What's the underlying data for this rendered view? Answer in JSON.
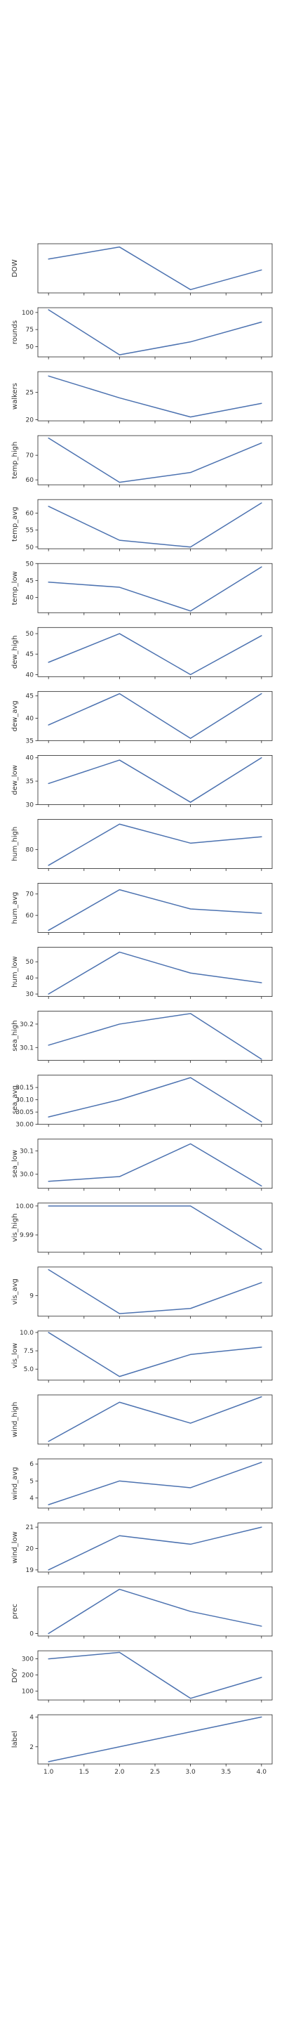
{
  "colors": {
    "line": "#4c72b0",
    "axis": "#262626",
    "text": "#333333"
  },
  "chart_data": [
    {
      "type": "line",
      "ylabel": "DOW",
      "x": [
        1,
        2,
        3,
        4
      ],
      "values": [
        4.6,
        5.7,
        1.8,
        3.6
      ],
      "ylim": [
        1.5,
        6.0
      ],
      "yticks": [],
      "yticklabels": [],
      "xticks": [
        1.0,
        1.5,
        2.0,
        2.5,
        3.0,
        3.5,
        4.0
      ],
      "xticklabels": [
        "1.0",
        "1.5",
        "2.0",
        "2.5",
        "3.0",
        "3.5",
        "4.0"
      ],
      "show_xticklabels": false
    },
    {
      "type": "line",
      "ylabel": "rounds",
      "x": [
        1,
        2,
        3,
        4
      ],
      "values": [
        104,
        38,
        57,
        86
      ],
      "ylim": [
        35,
        107
      ],
      "yticks": [
        50,
        75,
        100
      ],
      "yticklabels": [
        "50",
        "75",
        "100"
      ],
      "xticks": [
        1.0,
        1.5,
        2.0,
        2.5,
        3.0,
        3.5,
        4.0
      ],
      "xticklabels": [
        "1.0",
        "1.5",
        "2.0",
        "2.5",
        "3.0",
        "3.5",
        "4.0"
      ],
      "show_xticklabels": false
    },
    {
      "type": "line",
      "ylabel": "walkers",
      "x": [
        1,
        2,
        3,
        4
      ],
      "values": [
        28,
        24,
        20.5,
        23
      ],
      "ylim": [
        19.8,
        28.8
      ],
      "yticks": [
        20,
        25
      ],
      "yticklabels": [
        "20",
        "25"
      ],
      "xticks": [
        1.0,
        1.5,
        2.0,
        2.5,
        3.0,
        3.5,
        4.0
      ],
      "xticklabels": [
        "1.0",
        "1.5",
        "2.0",
        "2.5",
        "3.0",
        "3.5",
        "4.0"
      ],
      "show_xticklabels": false
    },
    {
      "type": "line",
      "ylabel": "temp_high",
      "x": [
        1,
        2,
        3,
        4
      ],
      "values": [
        77,
        59,
        63,
        75
      ],
      "ylim": [
        58,
        78
      ],
      "yticks": [
        60,
        70
      ],
      "yticklabels": [
        "60",
        "70"
      ],
      "xticks": [
        1.0,
        1.5,
        2.0,
        2.5,
        3.0,
        3.5,
        4.0
      ],
      "xticklabels": [
        "1.0",
        "1.5",
        "2.0",
        "2.5",
        "3.0",
        "3.5",
        "4.0"
      ],
      "show_xticklabels": false
    },
    {
      "type": "line",
      "ylabel": "temp_avg",
      "x": [
        1,
        2,
        3,
        4
      ],
      "values": [
        62,
        52,
        50,
        63
      ],
      "ylim": [
        49.5,
        64
      ],
      "yticks": [
        50,
        55,
        60
      ],
      "yticklabels": [
        "50",
        "55",
        "60"
      ],
      "xticks": [
        1.0,
        1.5,
        2.0,
        2.5,
        3.0,
        3.5,
        4.0
      ],
      "xticklabels": [
        "1.0",
        "1.5",
        "2.0",
        "2.5",
        "3.0",
        "3.5",
        "4.0"
      ],
      "show_xticklabels": false
    },
    {
      "type": "line",
      "ylabel": "temp_low",
      "x": [
        1,
        2,
        3,
        4
      ],
      "values": [
        44.5,
        43,
        36,
        49
      ],
      "ylim": [
        35.5,
        50
      ],
      "yticks": [
        40,
        45,
        50
      ],
      "yticklabels": [
        "40",
        "45",
        "50"
      ],
      "xticks": [
        1.0,
        1.5,
        2.0,
        2.5,
        3.0,
        3.5,
        4.0
      ],
      "xticklabels": [
        "1.0",
        "1.5",
        "2.0",
        "2.5",
        "3.0",
        "3.5",
        "4.0"
      ],
      "show_xticklabels": false
    },
    {
      "type": "line",
      "ylabel": "dew_high",
      "x": [
        1,
        2,
        3,
        4
      ],
      "values": [
        43,
        50,
        40,
        49.5
      ],
      "ylim": [
        39.5,
        51.5
      ],
      "yticks": [
        40,
        45,
        50
      ],
      "yticklabels": [
        "40",
        "45",
        "50"
      ],
      "xticks": [
        1.0,
        1.5,
        2.0,
        2.5,
        3.0,
        3.5,
        4.0
      ],
      "xticklabels": [
        "1.0",
        "1.5",
        "2.0",
        "2.5",
        "3.0",
        "3.5",
        "4.0"
      ],
      "show_xticklabels": false
    },
    {
      "type": "line",
      "ylabel": "dew_avg",
      "x": [
        1,
        2,
        3,
        4
      ],
      "values": [
        38.5,
        45.5,
        35.5,
        45.5
      ],
      "ylim": [
        35,
        46
      ],
      "yticks": [
        35,
        40,
        45
      ],
      "yticklabels": [
        "35",
        "40",
        "45"
      ],
      "xticks": [
        1.0,
        1.5,
        2.0,
        2.5,
        3.0,
        3.5,
        4.0
      ],
      "xticklabels": [
        "1.0",
        "1.5",
        "2.0",
        "2.5",
        "3.0",
        "3.5",
        "4.0"
      ],
      "show_xticklabels": false
    },
    {
      "type": "line",
      "ylabel": "dew_low",
      "x": [
        1,
        2,
        3,
        4
      ],
      "values": [
        34.5,
        39.5,
        30.5,
        40
      ],
      "ylim": [
        30,
        40.5
      ],
      "yticks": [
        30,
        35,
        40
      ],
      "yticklabels": [
        "30",
        "35",
        "40"
      ],
      "xticks": [
        1.0,
        1.5,
        2.0,
        2.5,
        3.0,
        3.5,
        4.0
      ],
      "xticklabels": [
        "1.0",
        "1.5",
        "2.0",
        "2.5",
        "3.0",
        "3.5",
        "4.0"
      ],
      "show_xticklabels": false
    },
    {
      "type": "line",
      "ylabel": "hum_high",
      "x": [
        1,
        2,
        3,
        4
      ],
      "values": [
        75,
        88,
        82,
        84
      ],
      "ylim": [
        74,
        89.5
      ],
      "yticks": [
        80
      ],
      "yticklabels": [
        "80"
      ],
      "xticks": [
        1.0,
        1.5,
        2.0,
        2.5,
        3.0,
        3.5,
        4.0
      ],
      "xticklabels": [
        "1.0",
        "1.5",
        "2.0",
        "2.5",
        "3.0",
        "3.5",
        "4.0"
      ],
      "show_xticklabels": false
    },
    {
      "type": "line",
      "ylabel": "hum_avg",
      "x": [
        1,
        2,
        3,
        4
      ],
      "values": [
        53,
        72,
        63,
        61
      ],
      "ylim": [
        52,
        75
      ],
      "yticks": [
        60,
        70
      ],
      "yticklabels": [
        "60",
        "70"
      ],
      "xticks": [
        1.0,
        1.5,
        2.0,
        2.5,
        3.0,
        3.5,
        4.0
      ],
      "xticklabels": [
        "1.0",
        "1.5",
        "2.0",
        "2.5",
        "3.0",
        "3.5",
        "4.0"
      ],
      "show_xticklabels": false
    },
    {
      "type": "line",
      "ylabel": "hum_low",
      "x": [
        1,
        2,
        3,
        4
      ],
      "values": [
        30,
        56,
        43,
        37
      ],
      "ylim": [
        28.5,
        59
      ],
      "yticks": [
        30,
        40,
        50
      ],
      "yticklabels": [
        "30",
        "40",
        "50"
      ],
      "xticks": [
        1.0,
        1.5,
        2.0,
        2.5,
        3.0,
        3.5,
        4.0
      ],
      "xticklabels": [
        "1.0",
        "1.5",
        "2.0",
        "2.5",
        "3.0",
        "3.5",
        "4.0"
      ],
      "show_xticklabels": false
    },
    {
      "type": "line",
      "ylabel": "sea_high",
      "x": [
        1,
        2,
        3,
        4
      ],
      "values": [
        30.11,
        30.2,
        30.245,
        30.05
      ],
      "ylim": [
        30.045,
        30.255
      ],
      "yticks": [
        30.1,
        30.2
      ],
      "yticklabels": [
        "30.1",
        "30.2"
      ],
      "xticks": [
        1.0,
        1.5,
        2.0,
        2.5,
        3.0,
        3.5,
        4.0
      ],
      "xticklabels": [
        "1.0",
        "1.5",
        "2.0",
        "2.5",
        "3.0",
        "3.5",
        "4.0"
      ],
      "show_xticklabels": false
    },
    {
      "type": "line",
      "ylabel": "sea_avg",
      "x": [
        1,
        2,
        3,
        4
      ],
      "values": [
        30.03,
        30.1,
        30.19,
        30.01
      ],
      "ylim": [
        30.0,
        30.2
      ],
      "yticks": [
        30.0,
        30.05,
        30.1,
        30.15
      ],
      "yticklabels": [
        "30.00",
        "30.05",
        "30.10",
        "30.15"
      ],
      "xticks": [
        1.0,
        1.5,
        2.0,
        2.5,
        3.0,
        3.5,
        4.0
      ],
      "xticklabels": [
        "1.0",
        "1.5",
        "2.0",
        "2.5",
        "3.0",
        "3.5",
        "4.0"
      ],
      "show_xticklabels": false
    },
    {
      "type": "line",
      "ylabel": "sea_low",
      "x": [
        1,
        2,
        3,
        4
      ],
      "values": [
        29.97,
        29.99,
        30.13,
        29.95
      ],
      "ylim": [
        29.94,
        30.15
      ],
      "yticks": [
        30.0,
        30.1
      ],
      "yticklabels": [
        "30.0",
        "30.1"
      ],
      "xticks": [
        1.0,
        1.5,
        2.0,
        2.5,
        3.0,
        3.5,
        4.0
      ],
      "xticklabels": [
        "1.0",
        "1.5",
        "2.0",
        "2.5",
        "3.0",
        "3.5",
        "4.0"
      ],
      "show_xticklabels": false
    },
    {
      "type": "line",
      "ylabel": "vis_high",
      "x": [
        1,
        2,
        3,
        4
      ],
      "values": [
        10.0,
        10.0,
        10.0,
        9.985
      ],
      "ylim": [
        9.984,
        10.001
      ],
      "yticks": [
        9.99,
        10.0
      ],
      "yticklabels": [
        "9.99",
        "10.00"
      ],
      "xticks": [
        1.0,
        1.5,
        2.0,
        2.5,
        3.0,
        3.5,
        4.0
      ],
      "xticklabels": [
        "1.0",
        "1.5",
        "2.0",
        "2.5",
        "3.0",
        "3.5",
        "4.0"
      ],
      "show_xticklabels": false
    },
    {
      "type": "line",
      "ylabel": "vis_avg",
      "x": [
        1,
        2,
        3,
        4
      ],
      "values": [
        10,
        8.3,
        8.5,
        9.5
      ],
      "ylim": [
        8.2,
        10.1
      ],
      "yticks": [
        9
      ],
      "yticklabels": [
        "9"
      ],
      "xticks": [
        1.0,
        1.5,
        2.0,
        2.5,
        3.0,
        3.5,
        4.0
      ],
      "xticklabels": [
        "1.0",
        "1.5",
        "2.0",
        "2.5",
        "3.0",
        "3.5",
        "4.0"
      ],
      "show_xticklabels": false
    },
    {
      "type": "line",
      "ylabel": "vis_low",
      "x": [
        1,
        2,
        3,
        4
      ],
      "values": [
        10,
        4,
        7,
        8
      ],
      "ylim": [
        3.5,
        10.2
      ],
      "yticks": [
        5.0,
        7.5,
        10.0
      ],
      "yticklabels": [
        "5.0",
        "7.5",
        "10.0"
      ],
      "xticks": [
        1.0,
        1.5,
        2.0,
        2.5,
        3.0,
        3.5,
        4.0
      ],
      "xticklabels": [
        "1.0",
        "1.5",
        "2.0",
        "2.5",
        "3.0",
        "3.5",
        "4.0"
      ],
      "show_xticklabels": false
    },
    {
      "type": "line",
      "ylabel": "wind_high",
      "x": [
        1,
        2,
        3,
        4
      ],
      "values": [
        12,
        16.3,
        14,
        16.9
      ],
      "ylim": [
        11.7,
        17.1
      ],
      "yticks": [],
      "yticklabels": [],
      "xticks": [
        1.0,
        1.5,
        2.0,
        2.5,
        3.0,
        3.5,
        4.0
      ],
      "xticklabels": [
        "1.0",
        "1.5",
        "2.0",
        "2.5",
        "3.0",
        "3.5",
        "4.0"
      ],
      "show_xticklabels": false
    },
    {
      "type": "line",
      "ylabel": "wind_avg",
      "x": [
        1,
        2,
        3,
        4
      ],
      "values": [
        3.6,
        5.0,
        4.6,
        6.1
      ],
      "ylim": [
        3.4,
        6.3
      ],
      "yticks": [
        4,
        5,
        6
      ],
      "yticklabels": [
        "4",
        "5",
        "6"
      ],
      "xticks": [
        1.0,
        1.5,
        2.0,
        2.5,
        3.0,
        3.5,
        4.0
      ],
      "xticklabels": [
        "1.0",
        "1.5",
        "2.0",
        "2.5",
        "3.0",
        "3.5",
        "4.0"
      ],
      "show_xticklabels": false
    },
    {
      "type": "line",
      "ylabel": "wind_low",
      "x": [
        1,
        2,
        3,
        4
      ],
      "values": [
        19,
        20.6,
        20.2,
        21
      ],
      "ylim": [
        18.9,
        21.2
      ],
      "yticks": [
        19,
        20,
        21
      ],
      "yticklabels": [
        "19",
        "20",
        "21"
      ],
      "xticks": [
        1.0,
        1.5,
        2.0,
        2.5,
        3.0,
        3.5,
        4.0
      ],
      "xticklabels": [
        "1.0",
        "1.5",
        "2.0",
        "2.5",
        "3.0",
        "3.5",
        "4.0"
      ],
      "show_xticklabels": false
    },
    {
      "type": "line",
      "ylabel": "prec",
      "x": [
        1,
        2,
        3,
        4
      ],
      "values": [
        0.0,
        0.9,
        0.45,
        0.15
      ],
      "ylim": [
        -0.05,
        0.95
      ],
      "yticks": [
        0
      ],
      "yticklabels": [
        "0"
      ],
      "xticks": [
        1.0,
        1.5,
        2.0,
        2.5,
        3.0,
        3.5,
        4.0
      ],
      "xticklabels": [
        "1.0",
        "1.5",
        "2.0",
        "2.5",
        "3.0",
        "3.5",
        "4.0"
      ],
      "show_xticklabels": false
    },
    {
      "type": "line",
      "ylabel": "DOY",
      "x": [
        1,
        2,
        3,
        4
      ],
      "values": [
        300,
        340,
        55,
        185
      ],
      "ylim": [
        45,
        350
      ],
      "yticks": [
        100,
        200,
        300
      ],
      "yticklabels": [
        "100",
        "200",
        "300"
      ],
      "xticks": [
        1.0,
        1.5,
        2.0,
        2.5,
        3.0,
        3.5,
        4.0
      ],
      "xticklabels": [
        "1.0",
        "1.5",
        "2.0",
        "2.5",
        "3.0",
        "3.5",
        "4.0"
      ],
      "show_xticklabels": false
    },
    {
      "type": "line",
      "ylabel": "label",
      "x": [
        1,
        2,
        3,
        4
      ],
      "values": [
        1,
        2,
        3,
        4
      ],
      "ylim": [
        0.85,
        4.15
      ],
      "yticks": [
        2,
        4
      ],
      "yticklabels": [
        "2",
        "4"
      ],
      "xticks": [
        1.0,
        1.5,
        2.0,
        2.5,
        3.0,
        3.5,
        4.0
      ],
      "xticklabels": [
        "1.0",
        "1.5",
        "2.0",
        "2.5",
        "3.0",
        "3.5",
        "4.0"
      ],
      "show_xticklabels": true
    }
  ]
}
